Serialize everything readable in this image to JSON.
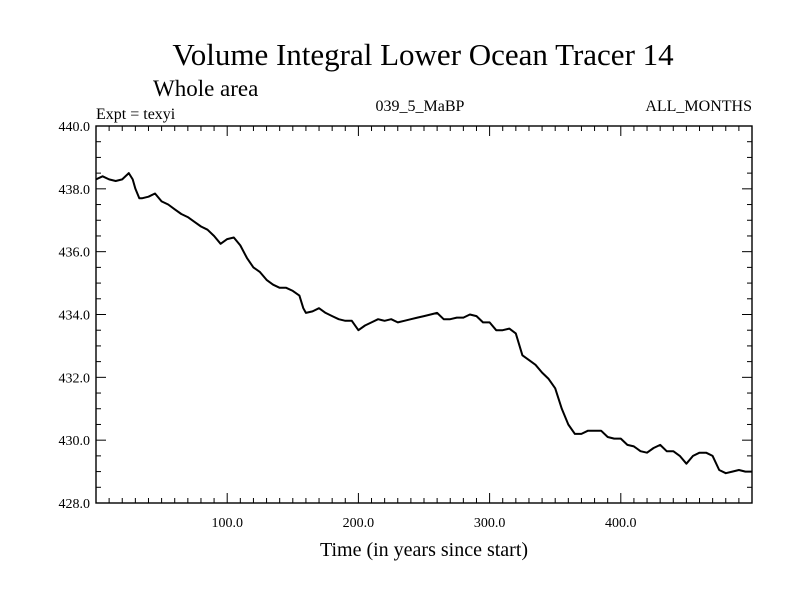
{
  "chart_data": {
    "type": "line",
    "title": "Volume Integral Lower Ocean Tracer 14",
    "subtitle": "Whole area",
    "experiment_label": "Expt = texyi",
    "period_label": "039_5_MaBP",
    "months_label": "ALL_MONTHS",
    "xlabel": "Time (in years since start)",
    "ylabel": "",
    "xlim": [
      0,
      500
    ],
    "ylim": [
      428,
      440
    ],
    "x_ticks": [
      100,
      200,
      300,
      400
    ],
    "x_tick_labels": [
      "100.0",
      "200.0",
      "300.0",
      "400.0"
    ],
    "y_ticks": [
      428,
      430,
      432,
      434,
      436,
      438,
      440
    ],
    "y_tick_labels": [
      "428.0",
      "430.0",
      "432.0",
      "434.0",
      "436.0",
      "438.0",
      "440.0"
    ],
    "grid": false,
    "series": [
      {
        "color": "#000000",
        "x": [
          0,
          5,
          10,
          15,
          20,
          25,
          28,
          30,
          33,
          35,
          40,
          45,
          50,
          55,
          60,
          65,
          70,
          75,
          80,
          85,
          90,
          95,
          100,
          105,
          110,
          115,
          120,
          125,
          130,
          135,
          140,
          145,
          150,
          155,
          158,
          160,
          165,
          170,
          175,
          180,
          185,
          190,
          195,
          200,
          205,
          210,
          215,
          220,
          225,
          230,
          235,
          240,
          245,
          250,
          255,
          260,
          265,
          270,
          275,
          280,
          285,
          290,
          295,
          300,
          305,
          310,
          315,
          320,
          325,
          330,
          335,
          340,
          345,
          350,
          355,
          360,
          365,
          370,
          375,
          380,
          385,
          390,
          395,
          400,
          405,
          410,
          415,
          420,
          425,
          430,
          435,
          440,
          445,
          450,
          455,
          460,
          465,
          470,
          475,
          480,
          485,
          490,
          495,
          500
        ],
        "y": [
          438.3,
          438.4,
          438.3,
          438.25,
          438.3,
          438.5,
          438.3,
          438.0,
          437.7,
          437.7,
          437.75,
          437.85,
          437.6,
          437.5,
          437.35,
          437.2,
          437.1,
          436.95,
          436.8,
          436.7,
          436.5,
          436.25,
          436.4,
          436.45,
          436.2,
          435.8,
          435.5,
          435.35,
          435.1,
          434.95,
          434.85,
          434.85,
          434.75,
          434.6,
          434.2,
          434.05,
          434.1,
          434.2,
          434.05,
          433.95,
          433.85,
          433.8,
          433.8,
          433.5,
          433.65,
          433.75,
          433.85,
          433.8,
          433.85,
          433.75,
          433.8,
          433.85,
          433.9,
          433.95,
          434.0,
          434.05,
          433.85,
          433.85,
          433.9,
          433.9,
          434.0,
          433.95,
          433.75,
          433.75,
          433.5,
          433.5,
          433.55,
          433.4,
          432.7,
          432.55,
          432.4,
          432.15,
          431.95,
          431.65,
          431.0,
          430.5,
          430.2,
          430.2,
          430.3,
          430.3,
          430.3,
          430.1,
          430.05,
          430.05,
          429.85,
          429.8,
          429.65,
          429.6,
          429.75,
          429.85,
          429.65,
          429.65,
          429.5,
          429.25,
          429.5,
          429.6,
          429.6,
          429.5,
          429.05,
          428.95,
          429.0,
          429.05,
          429.0,
          429.0
        ]
      }
    ]
  }
}
